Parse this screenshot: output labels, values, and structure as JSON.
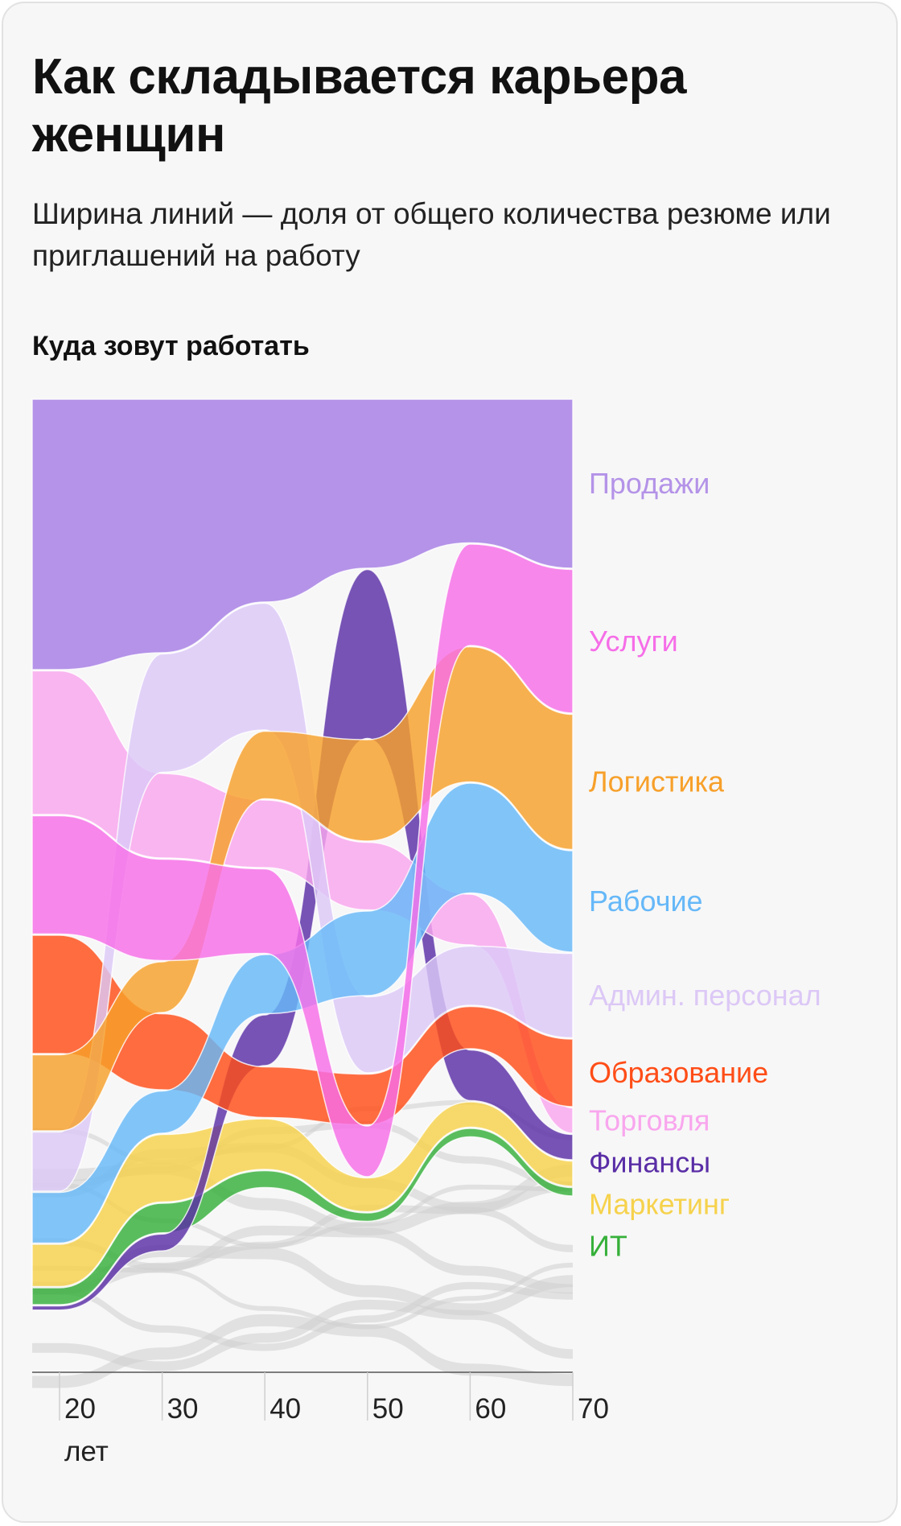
{
  "title": "Как складывается карьера женщин",
  "subtitle": "Ширина линий — доля от общего количества резюме или приглашений на работу",
  "section_label": "Куда зовут работать",
  "colors": {
    "Продажи": "#b493e8",
    "Услуги": "#f66ee8",
    "Логистика": "#f7a02a",
    "Рабочие": "#66b8f8",
    "Админ. персонал": "#dcc8f6",
    "Образование": "#ff4d17",
    "Торговля": "#f9a6ee",
    "Финансы": "#5a2ea6",
    "Маркетинг": "#f6d24c",
    "ИТ": "#36b03a",
    "other": "#cfcfcf"
  },
  "chart_data": {
    "type": "bump-area",
    "x": [
      20,
      30,
      40,
      50,
      60,
      70
    ],
    "x_tick_labels": [
      "20",
      "30",
      "40",
      "50",
      "60",
      "70"
    ],
    "x_unit_label": "лет",
    "series": [
      {
        "name": "Продажи",
        "values": [
          32,
          30,
          24,
          20,
          17,
          20
        ],
        "rank_order": [
          1,
          1,
          1,
          1,
          1,
          1
        ]
      },
      {
        "name": "Услуги",
        "values": [
          14,
          12,
          10,
          6,
          12,
          17
        ],
        "rank_order": [
          3,
          4,
          5,
          8,
          2,
          2
        ]
      },
      {
        "name": "Логистика",
        "values": [
          9,
          6,
          8,
          12,
          16,
          16
        ],
        "rank_order": [
          5,
          5,
          3,
          3,
          3,
          3
        ]
      },
      {
        "name": "Рабочие",
        "values": [
          6,
          5,
          7,
          10,
          13,
          12
        ],
        "rank_order": [
          7,
          7,
          6,
          5,
          4,
          4
        ]
      },
      {
        "name": "Админ. персонал",
        "values": [
          7,
          14,
          15,
          9,
          7,
          10
        ],
        "rank_order": [
          6,
          2,
          2,
          6,
          6,
          5
        ]
      },
      {
        "name": "Образование",
        "values": [
          14,
          9,
          6,
          6,
          5,
          8
        ],
        "rank_order": [
          4,
          6,
          8,
          7,
          7,
          6
        ]
      },
      {
        "name": "Торговля",
        "values": [
          17,
          10,
          8,
          8,
          6,
          3
        ],
        "rank_order": [
          2,
          3,
          4,
          4,
          5,
          7
        ]
      },
      {
        "name": "Финансы",
        "values": [
          0.5,
          2,
          6,
          20,
          6,
          3
        ],
        "rank_order": [
          10,
          10,
          7,
          2,
          8,
          8
        ]
      },
      {
        "name": "Маркетинг",
        "values": [
          5,
          8,
          6,
          4,
          3,
          3
        ],
        "rank_order": [
          8,
          8,
          9,
          9,
          9,
          9
        ]
      },
      {
        "name": "ИТ",
        "values": [
          2,
          3.5,
          2,
          1,
          1,
          1
        ],
        "rank_order": [
          9,
          9,
          10,
          10,
          10,
          10
        ]
      }
    ],
    "background_series_note": ""
  }
}
